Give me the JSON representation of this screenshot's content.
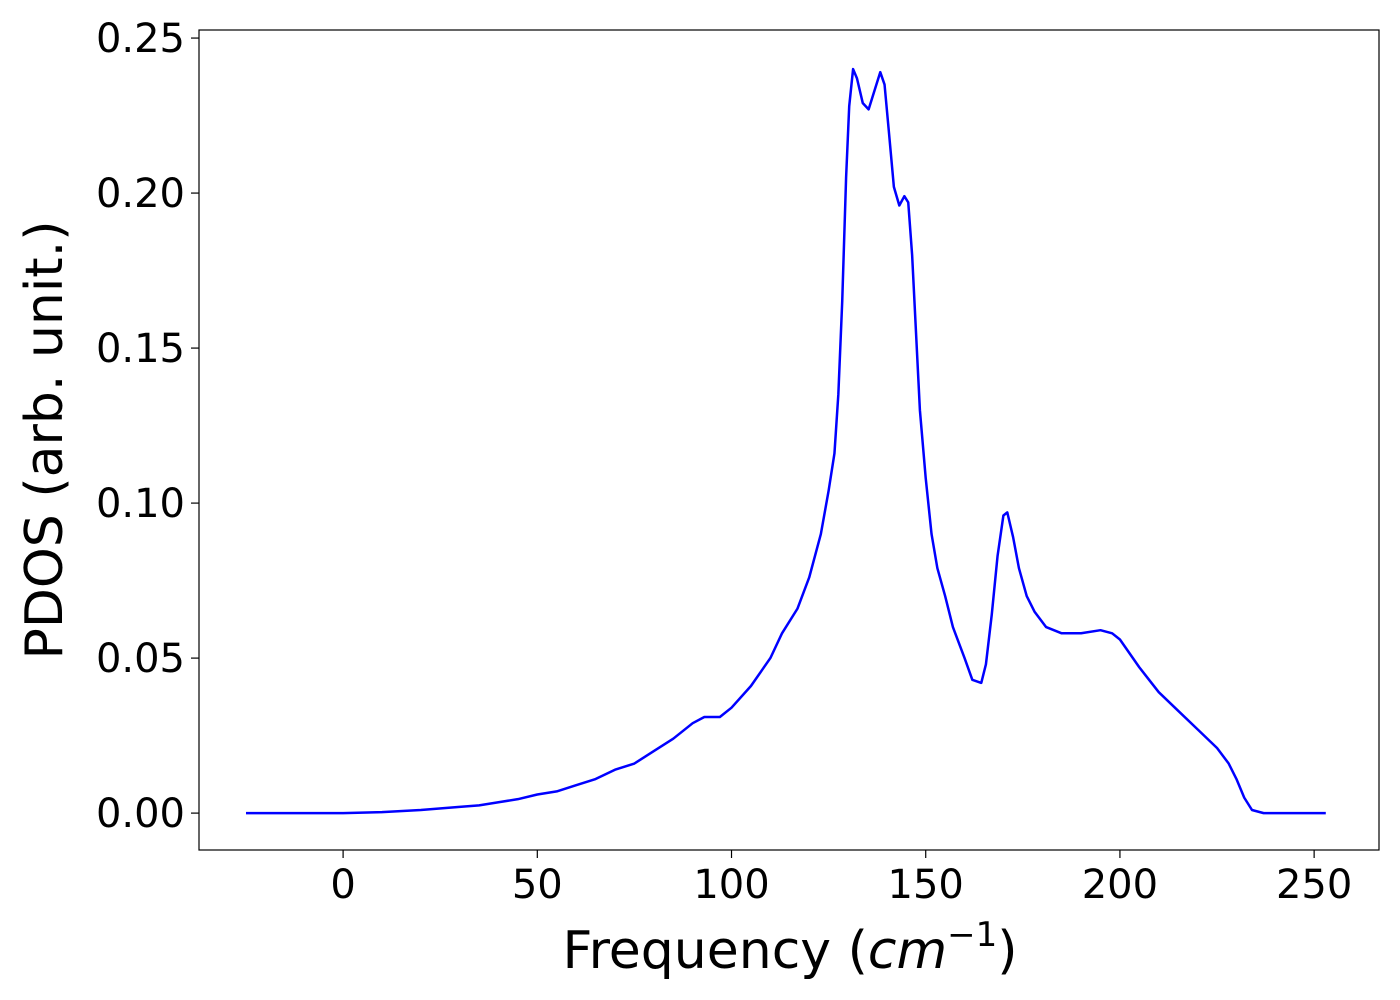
{
  "chart_data": {
    "type": "line",
    "xlabel": [
      "Frequency (",
      "cm",
      "−1",
      ")"
    ],
    "ylabel": "PDOS (arb. unit.)",
    "xlim": [
      -37.1,
      266.7
    ],
    "ylim": [
      -0.0119,
      0.2526
    ],
    "xticks": [
      0,
      50,
      100,
      150,
      200,
      250
    ],
    "yticks": [
      {
        "value": 0,
        "label": "0.00"
      },
      {
        "value": 0.05,
        "label": "0.05"
      },
      {
        "value": 0.1,
        "label": "0.10"
      },
      {
        "value": 0.15,
        "label": "0.15"
      },
      {
        "value": 0.2,
        "label": "0.20"
      },
      {
        "value": 0.25,
        "label": "0.25"
      }
    ],
    "grid": false,
    "x": [
      -25,
      0,
      10,
      20,
      30,
      35,
      40,
      45,
      50,
      55,
      60,
      65,
      70,
      75,
      80,
      85,
      90,
      93,
      97,
      100,
      105,
      110,
      113,
      117,
      120,
      123,
      125,
      126.5,
      127.5,
      128.5,
      129.5,
      130.3,
      131.3,
      132.3,
      133.8,
      135.3,
      138.3,
      139.4,
      140.5,
      141.8,
      143.2,
      144.5,
      145.5,
      146.5,
      147.5,
      148.5,
      150,
      151.5,
      153,
      155,
      157,
      160,
      162,
      164.3,
      165.5,
      167,
      168.5,
      170,
      171,
      172.5,
      174,
      176,
      178,
      181,
      185,
      190,
      195,
      198,
      200,
      205,
      210,
      215,
      220,
      225,
      228,
      230,
      232,
      234,
      237,
      253
    ],
    "series": [
      {
        "color": "#0000ff",
        "values": [
          0,
          0,
          0.0003,
          0.001,
          0.002,
          0.0025,
          0.0035,
          0.0045,
          0.006,
          0.007,
          0.009,
          0.011,
          0.014,
          0.016,
          0.02,
          0.024,
          0.029,
          0.031,
          0.031,
          0.034,
          0.041,
          0.05,
          0.058,
          0.066,
          0.076,
          0.09,
          0.104,
          0.116,
          0.135,
          0.165,
          0.205,
          0.228,
          0.24,
          0.237,
          0.229,
          0.227,
          0.239,
          0.235,
          0.22,
          0.202,
          0.196,
          0.199,
          0.197,
          0.18,
          0.155,
          0.13,
          0.108,
          0.09,
          0.079,
          0.07,
          0.06,
          0.05,
          0.043,
          0.042,
          0.048,
          0.064,
          0.083,
          0.096,
          0.097,
          0.089,
          0.079,
          0.07,
          0.065,
          0.06,
          0.058,
          0.058,
          0.059,
          0.058,
          0.056,
          0.047,
          0.039,
          0.033,
          0.027,
          0.021,
          0.016,
          0.011,
          0.005,
          0.001,
          0,
          0
        ]
      }
    ]
  }
}
